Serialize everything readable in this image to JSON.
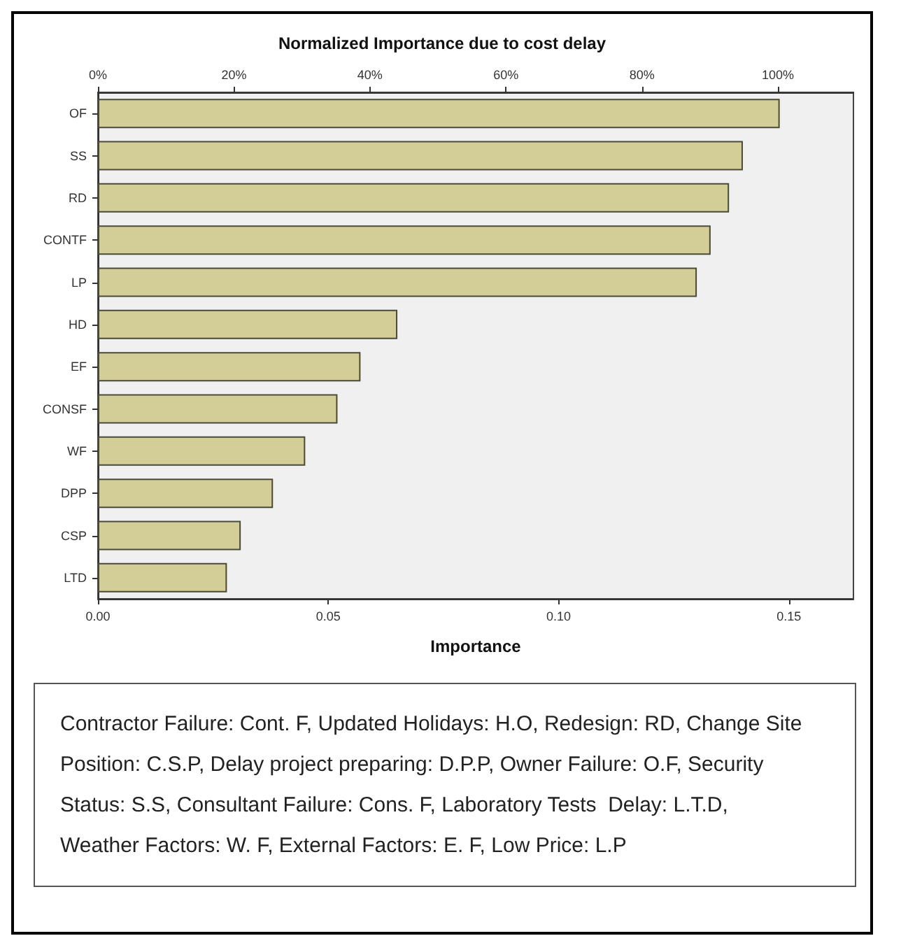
{
  "chart_data": {
    "type": "bar",
    "orientation": "horizontal",
    "title": "Normalized Importance due to cost delay",
    "xlabel": "Importance",
    "categories": [
      "OF",
      "SS",
      "RD",
      "CONTF",
      "LP",
      "HD",
      "EF",
      "CONSF",
      "WF",
      "DPP",
      "CSP",
      "LTD"
    ],
    "values": [
      0.148,
      0.14,
      0.137,
      0.133,
      0.13,
      0.065,
      0.057,
      0.052,
      0.045,
      0.038,
      0.031,
      0.028
    ],
    "color": "#d3cd97",
    "xlim": [
      0,
      0.164
    ],
    "xticks": [
      {
        "value": 0,
        "label": "0.00"
      },
      0.05,
      {
        "value": 0.1,
        "label": "0.10"
      },
      0.15
    ],
    "x2lim": [
      0,
      111.1
    ],
    "x2ticks": [
      {
        "value": 0,
        "label": "0%"
      },
      {
        "value": 20,
        "label": "20%"
      },
      {
        "value": 40,
        "label": "40%"
      },
      {
        "value": 60,
        "label": "60%"
      },
      {
        "value": 80,
        "label": "80%"
      },
      {
        "value": 100,
        "label": "100%"
      }
    ],
    "annotations": [
      "Contractor Failure: Cont. F, Updated Holidays: H.O, Redesign: RD, Change Site Position: C.S.P, Delay project preparing: D.P.P, Owner Failure: O.F, Security Status: S.S, Consultant Failure: Cons. F, Laboratory Tests  Delay: L.T.D, Weather Factors: W. F, External Factors: E. F, Low Price: L.P"
    ]
  }
}
